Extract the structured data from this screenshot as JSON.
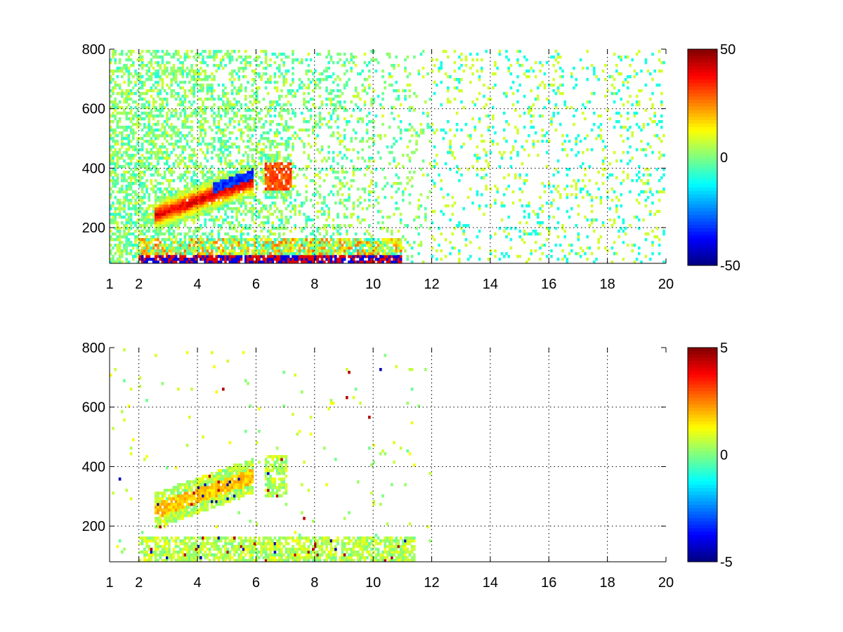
{
  "chart_data": [
    {
      "type": "heatmap",
      "title": "",
      "xlabel": "",
      "ylabel": "",
      "xlim": [
        1,
        20
      ],
      "ylim": [
        80,
        800
      ],
      "x_ticks": [
        1,
        2,
        4,
        6,
        8,
        10,
        12,
        14,
        16,
        18,
        20
      ],
      "y_ticks": [
        200,
        400,
        600,
        800
      ],
      "grid": true,
      "colormap": "jet",
      "clim": [
        -50,
        50
      ],
      "colorbar_ticks": [
        "50",
        "0",
        "-50"
      ],
      "features": [
        {
          "name": "rising ridge, positive",
          "x": [
            2.5,
            5.8
          ],
          "y": [
            240,
            360
          ],
          "value": 40
        },
        {
          "name": "rising ridge, negative flank",
          "x": [
            4.5,
            5.9
          ],
          "y": [
            270,
            330
          ],
          "value": -40
        },
        {
          "name": "low band",
          "x": [
            2.0,
            11.0
          ],
          "y": [
            80,
            170
          ],
          "value": 35
        },
        {
          "name": "ridge continuation",
          "x": [
            6.3,
            7.2
          ],
          "y": [
            330,
            420
          ],
          "value": 30
        }
      ],
      "scatter_density": "dense below x=6, sparse speckle above x=6"
    },
    {
      "type": "heatmap",
      "title": "",
      "xlabel": "",
      "ylabel": "",
      "xlim": [
        1,
        20
      ],
      "ylim": [
        80,
        800
      ],
      "x_ticks": [
        1,
        2,
        4,
        6,
        8,
        10,
        12,
        14,
        16,
        18,
        20
      ],
      "y_ticks": [
        200,
        400,
        600,
        800
      ],
      "grid": true,
      "colormap": "jet",
      "clim": [
        -5,
        5
      ],
      "colorbar_ticks": [
        "5",
        "0",
        "-5"
      ],
      "features": [
        {
          "name": "rising ridge",
          "x": [
            2.5,
            5.8
          ],
          "y": [
            240,
            380
          ],
          "value": 1
        },
        {
          "name": "low band",
          "x": [
            2.0,
            11.5
          ],
          "y": [
            80,
            170
          ],
          "value": 0.5
        },
        {
          "name": "ridge continuation",
          "x": [
            6.3,
            7.0
          ],
          "y": [
            300,
            420
          ],
          "value": 0.5
        }
      ],
      "scatter_density": "values only for x < 12"
    }
  ]
}
